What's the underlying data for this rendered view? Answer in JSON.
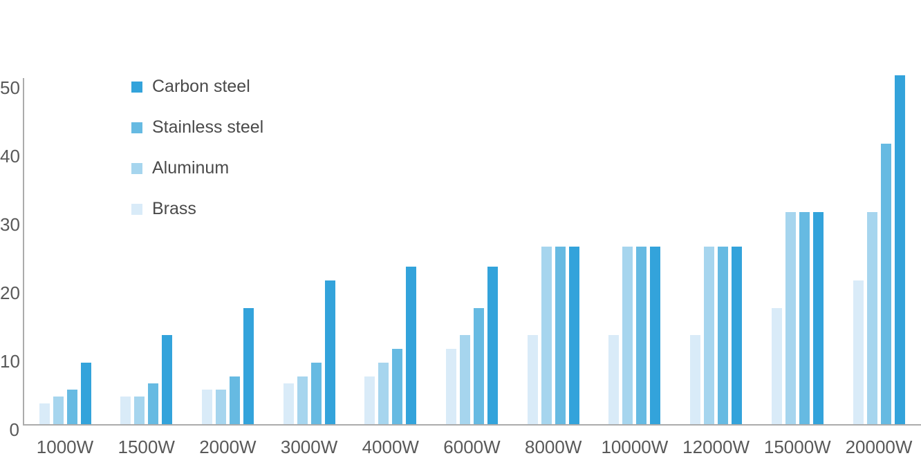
{
  "chart_data": {
    "type": "bar",
    "title": "",
    "xlabel": "",
    "ylabel": "",
    "categories": [
      "1000W",
      "1500W",
      "2000W",
      "3000W",
      "4000W",
      "6000W",
      "8000W",
      "10000W",
      "12000W",
      "15000W",
      "20000W"
    ],
    "series": [
      {
        "name": "Carbon steel",
        "color": "#33a3db",
        "values": [
          9,
          13,
          17,
          21,
          23,
          23,
          26,
          26,
          26,
          31,
          51
        ]
      },
      {
        "name": "Stainless steel",
        "color": "#66bae2",
        "values": [
          5,
          6,
          7,
          9,
          11,
          17,
          26,
          26,
          26,
          31,
          41
        ]
      },
      {
        "name": "Aluminum",
        "color": "#a6d5ee",
        "values": [
          4,
          4,
          5,
          7,
          9,
          13,
          26,
          26,
          26,
          31,
          31
        ]
      },
      {
        "name": "Brass",
        "color": "#d9ebf8",
        "values": [
          3,
          4,
          5,
          6,
          7,
          11,
          13,
          13,
          13,
          17,
          21
        ]
      }
    ],
    "bar_draw_order": [
      "Brass",
      "Aluminum",
      "Stainless steel",
      "Carbon steel"
    ],
    "y_ticks": [
      0,
      10,
      20,
      30,
      40,
      50
    ],
    "ylim": [
      0,
      50
    ],
    "grid": false,
    "legend_position": "top-left",
    "axis_color": "#ababab",
    "tick_label_color": "#595959",
    "legend_text_color": "#4a4a4a"
  }
}
